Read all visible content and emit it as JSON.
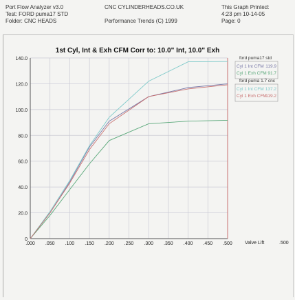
{
  "header": {
    "left": [
      "Port Flow Analyzer v3.0",
      "Test: FORD puma17 STD",
      "Folder: CNC HEADS"
    ],
    "middle": [
      "CNC CYLINDERHEADS.CO.UK",
      "Performance Trends (C) 1999"
    ],
    "right": [
      "This Graph Printed:",
      "4:23 pm 10-14-05",
      "Page: 0"
    ]
  },
  "colors": {
    "std_int": "#7a7aa8",
    "std_exh": "#5aa87a",
    "cnc_int": "#7fcaca",
    "cnc_exh": "#c87070",
    "grid": "#c9c9d4",
    "axis": "#555555"
  },
  "chart_data": {
    "type": "line",
    "title": "1st Cyl, Int & Exh CFM   Corr to: 10.0\" Int, 10.0\" Exh",
    "xlabel": "Valve Lift",
    "x_extra_tick": ".500",
    "xlim": [
      0,
      0.5
    ],
    "ylim": [
      0,
      140
    ],
    "x_ticks": [
      ".000",
      ".050",
      ".100",
      ".150",
      ".200",
      ".250",
      ".300",
      ".350",
      ".400",
      ".450",
      ".500"
    ],
    "y_ticks": [
      "0",
      "20.0",
      "40.0",
      "60.0",
      "80.0",
      "100.0",
      "120.0",
      "140.0"
    ],
    "grid": true,
    "legend": [
      {
        "group": "ford puma17 std",
        "entries": [
          {
            "label": "Cyl 1 Int CFM",
            "value": "119.9"
          },
          {
            "label": "Cyl 1 Exh CFM",
            "value": "91.7"
          }
        ]
      },
      {
        "group": "ford puma 1.7 cnc",
        "entries": [
          {
            "label": "Cyl 1 Int CFM",
            "value": "137.2"
          },
          {
            "label": "Cyl 1 Exh CFM",
            "value": "119.2"
          }
        ]
      }
    ],
    "series": [
      {
        "x": [
          0,
          0.05,
          0.1,
          0.15,
          0.2,
          0.3,
          0.4,
          0.5
        ],
        "y": [
          0,
          20,
          44,
          71,
          91,
          110,
          117,
          119.9
        ]
      },
      {
        "x": [
          0,
          0.05,
          0.1,
          0.15,
          0.2,
          0.3,
          0.4,
          0.5
        ],
        "y": [
          0,
          18,
          38,
          58,
          76,
          89,
          91,
          91.7
        ]
      },
      {
        "x": [
          0,
          0.05,
          0.1,
          0.15,
          0.2,
          0.3,
          0.4,
          0.5
        ],
        "y": [
          0,
          21,
          45,
          72,
          94,
          122,
          137,
          137.2
        ]
      },
      {
        "x": [
          0,
          0.05,
          0.1,
          0.15,
          0.2,
          0.3,
          0.4,
          0.5
        ],
        "y": [
          0,
          20,
          43,
          69,
          89,
          110,
          116,
          119.2
        ]
      }
    ]
  }
}
